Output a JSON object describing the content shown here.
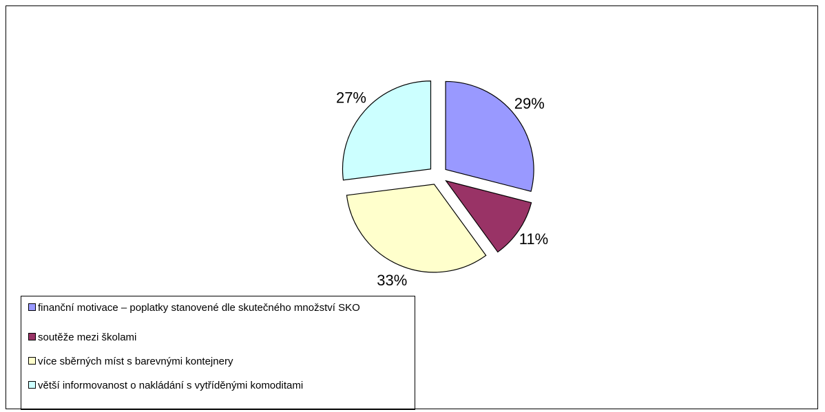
{
  "chart_data": {
    "type": "pie",
    "categories": [
      "finanční motivace – poplatky stanovené dle skutečného množství SKO",
      "soutěže mezi školami",
      "více sběrných míst s barevnými kontejnery",
      "větší informovanost o nakládání s vytříděnými komoditami"
    ],
    "values": [
      29,
      11,
      33,
      27
    ],
    "value_labels": [
      "29%",
      "11%",
      "33%",
      "27%"
    ],
    "colors": [
      "#9999ff",
      "#993366",
      "#ffffcc",
      "#ccffff"
    ],
    "legend": "bottom-left"
  }
}
